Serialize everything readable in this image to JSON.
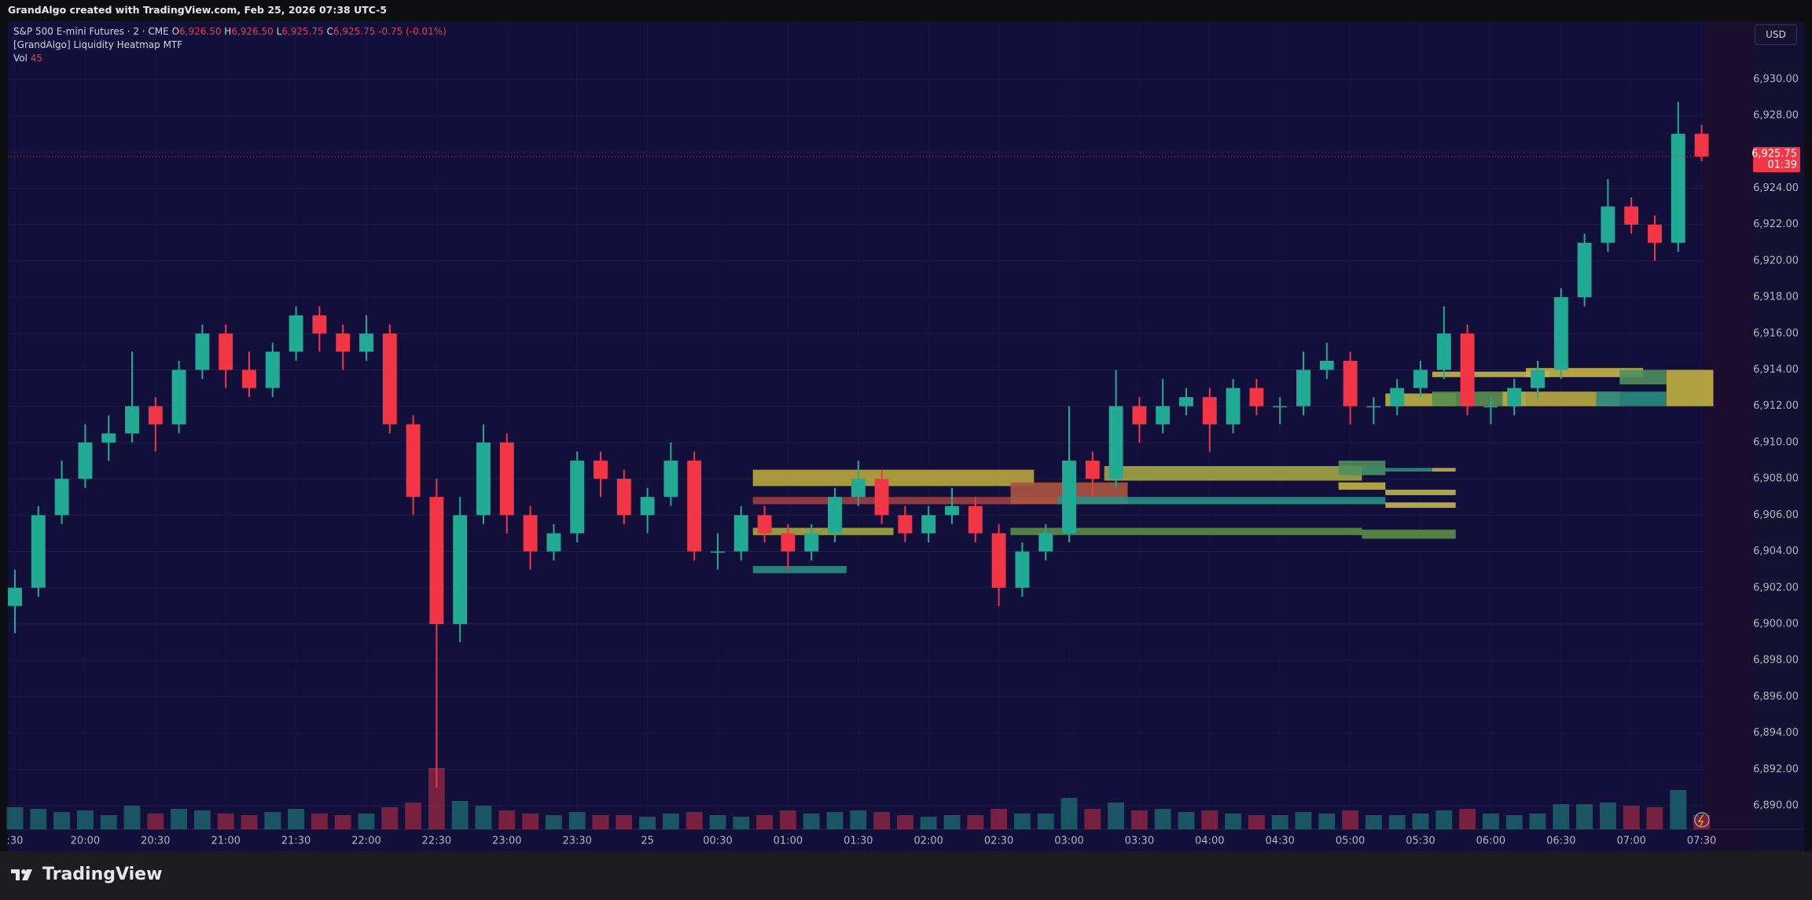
{
  "header": {
    "credit": "GrandAlgo created with TradingView.com, Feb 25, 2026 07:38 UTC-5"
  },
  "currency": "USD",
  "footer": {
    "brand": "TradingView"
  },
  "chart_data": {
    "type": "candlestick",
    "legend": {
      "symbol": "S&P 500 E-mini Futures · 2 · CME",
      "o_label": "O",
      "open": "6,926.50",
      "h_label": "H",
      "high": "6,926.50",
      "l_label": "L",
      "low": "6,925.75",
      "c_label": "C",
      "close": "6,925.75",
      "change": "-0.75 (-0.01%)",
      "indicator": "[GrandAlgo] Liquidity Heatmap MTF",
      "vol_label": "Vol",
      "vol": "45"
    },
    "x": [
      "19:30",
      "19:40",
      "19:50",
      "20:00",
      "20:10",
      "20:20",
      "20:30",
      "20:40",
      "20:50",
      "21:00",
      "21:10",
      "21:20",
      "21:30",
      "21:40",
      "21:50",
      "22:00",
      "22:10",
      "22:20",
      "22:30",
      "22:40",
      "22:50",
      "23:00",
      "23:10",
      "23:20",
      "23:30",
      "23:40",
      "23:50",
      "00:00",
      "00:10",
      "00:20",
      "00:30",
      "00:40",
      "00:50",
      "01:00",
      "01:10",
      "01:20",
      "01:30",
      "01:40",
      "01:50",
      "02:00",
      "02:10",
      "02:20",
      "02:30",
      "02:40",
      "02:50",
      "03:00",
      "03:10",
      "03:20",
      "03:30",
      "03:40",
      "03:50",
      "04:00",
      "04:10",
      "04:20",
      "04:30",
      "04:40",
      "04:50",
      "05:00",
      "05:10",
      "05:20",
      "05:30",
      "05:40",
      "05:50",
      "06:00",
      "06:10",
      "06:20",
      "06:30",
      "06:40",
      "06:50",
      "07:00",
      "07:10",
      "07:20",
      "07:30"
    ],
    "xticks": [
      {
        "value": "19:30",
        "label": ":30"
      },
      "20:00",
      "20:30",
      "21:00",
      "21:30",
      "22:00",
      "22:30",
      "23:00",
      "23:30",
      {
        "value": "00:00",
        "label": "25"
      },
      "00:30",
      "01:00",
      "01:30",
      "02:00",
      "02:30",
      "03:00",
      "03:30",
      "04:00",
      "04:30",
      "05:00",
      "05:30",
      "06:00",
      "06:30",
      "07:00",
      "07:30"
    ],
    "candles": [
      [
        6901,
        6903,
        6899.5,
        6902
      ],
      [
        6902,
        6906.5,
        6901.5,
        6906
      ],
      [
        6906,
        6909,
        6905.5,
        6908
      ],
      [
        6908,
        6911,
        6907.5,
        6910
      ],
      [
        6910,
        6911.5,
        6909,
        6910.5
      ],
      [
        6910.5,
        6915,
        6910,
        6912
      ],
      [
        6912,
        6912.5,
        6909.5,
        6911
      ],
      [
        6911,
        6914.5,
        6910.5,
        6914
      ],
      [
        6914,
        6916.5,
        6913.5,
        6916
      ],
      [
        6916,
        6916.5,
        6913,
        6914
      ],
      [
        6914,
        6915,
        6912.5,
        6913
      ],
      [
        6913,
        6915.5,
        6912.5,
        6915
      ],
      [
        6915,
        6917.5,
        6914.5,
        6917
      ],
      [
        6917,
        6917.5,
        6915,
        6916
      ],
      [
        6916,
        6916.5,
        6914,
        6915
      ],
      [
        6915,
        6917,
        6914.5,
        6916
      ],
      [
        6916,
        6916.5,
        6910.5,
        6911
      ],
      [
        6911,
        6911.5,
        6906,
        6907
      ],
      [
        6907,
        6908,
        6891,
        6900
      ],
      [
        6900,
        6907,
        6899,
        6906
      ],
      [
        6906,
        6911,
        6905.5,
        6910
      ],
      [
        6910,
        6910.5,
        6905,
        6906
      ],
      [
        6906,
        6906.5,
        6903,
        6904
      ],
      [
        6904,
        6905.5,
        6903.5,
        6905
      ],
      [
        6905,
        6909.5,
        6904.5,
        6909
      ],
      [
        6909,
        6909.5,
        6907,
        6908
      ],
      [
        6908,
        6908.5,
        6905.5,
        6906
      ],
      [
        6906,
        6907.5,
        6905,
        6907
      ],
      [
        6907,
        6910,
        6906.5,
        6909
      ],
      [
        6909,
        6909.5,
        6903.5,
        6904
      ],
      [
        6904,
        6905,
        6903,
        6904
      ],
      [
        6904,
        6906.5,
        6903.5,
        6906
      ],
      [
        6906,
        6906.5,
        6904.5,
        6905
      ],
      [
        6905,
        6905.5,
        6903,
        6904
      ],
      [
        6904,
        6905.5,
        6903.5,
        6905
      ],
      [
        6905,
        6907.5,
        6904.5,
        6907
      ],
      [
        6907,
        6909,
        6906.5,
        6908
      ],
      [
        6908,
        6908.5,
        6905.5,
        6906
      ],
      [
        6906,
        6906.5,
        6904.5,
        6905
      ],
      [
        6905,
        6906.5,
        6904.5,
        6906
      ],
      [
        6906,
        6907.5,
        6905.5,
        6906.5
      ],
      [
        6906.5,
        6907,
        6904.5,
        6905
      ],
      [
        6905,
        6905.5,
        6901,
        6902
      ],
      [
        6902,
        6904.5,
        6901.5,
        6904
      ],
      [
        6904,
        6905.5,
        6903.5,
        6905
      ],
      [
        6905,
        6912,
        6904.5,
        6909
      ],
      [
        6909,
        6909.5,
        6907,
        6908
      ],
      [
        6908,
        6914,
        6907.5,
        6912
      ],
      [
        6912,
        6912.5,
        6910,
        6911
      ],
      [
        6911,
        6913.5,
        6910.5,
        6912
      ],
      [
        6912,
        6913,
        6911.5,
        6912.5
      ],
      [
        6912.5,
        6913,
        6909.5,
        6911
      ],
      [
        6911,
        6913.5,
        6910.5,
        6913
      ],
      [
        6913,
        6913.5,
        6911.5,
        6912
      ],
      [
        6912,
        6912.5,
        6911,
        6912
      ],
      [
        6912,
        6915,
        6911.5,
        6914
      ],
      [
        6914,
        6915.5,
        6913.5,
        6914.5
      ],
      [
        6914.5,
        6915,
        6911,
        6912
      ],
      [
        6912,
        6912.5,
        6911,
        6912
      ],
      [
        6912,
        6913.5,
        6911.5,
        6913
      ],
      [
        6913,
        6914.5,
        6912.5,
        6914
      ],
      [
        6914,
        6917.5,
        6913.5,
        6916
      ],
      [
        6916,
        6916.5,
        6911.5,
        6912
      ],
      [
        6912,
        6912.5,
        6911,
        6912
      ],
      [
        6912,
        6913.5,
        6911.5,
        6913
      ],
      [
        6913,
        6914.5,
        6912.5,
        6914
      ],
      [
        6914,
        6918.5,
        6913.5,
        6918
      ],
      [
        6918,
        6921.5,
        6917.5,
        6921
      ],
      [
        6921,
        6924.5,
        6920.5,
        6923
      ],
      [
        6923,
        6923.5,
        6921.5,
        6922
      ],
      [
        6922,
        6922.5,
        6920,
        6921
      ],
      [
        6921,
        6928.75,
        6920.5,
        6927
      ],
      [
        6927,
        6927.5,
        6925.5,
        6925.75
      ]
    ],
    "volume": [
      1400,
      1300,
      1100,
      1200,
      900,
      1500,
      1000,
      1300,
      1200,
      1000,
      900,
      1100,
      1300,
      1000,
      900,
      1000,
      1400,
      1700,
      3900,
      1800,
      1500,
      1200,
      1000,
      900,
      1100,
      900,
      900,
      800,
      1000,
      1100,
      900,
      800,
      900,
      1200,
      1000,
      1100,
      1200,
      1100,
      900,
      800,
      900,
      900,
      1300,
      1000,
      1000,
      2000,
      1300,
      1700,
      1200,
      1300,
      1100,
      1200,
      1000,
      900,
      900,
      1100,
      1000,
      1200,
      900,
      900,
      1000,
      1200,
      1300,
      1000,
      900,
      1000,
      1600,
      1600,
      1700,
      1500,
      1400,
      2500,
      900
    ],
    "up_color": "#22ab94",
    "down_color": "#f23645",
    "heatmap": [
      {
        "from": "00:50",
        "to": "02:40",
        "price": [
          6907.6,
          6908.5
        ],
        "color": "#b8a83c"
      },
      {
        "from": "00:50",
        "to": "03:20",
        "price": [
          6906.6,
          6907.0
        ],
        "color": "#9c3f45"
      },
      {
        "from": "02:40",
        "to": "03:20",
        "price": [
          6906.6,
          6907.8
        ],
        "color": "#a8553f"
      },
      {
        "from": "03:20",
        "to": "05:00",
        "price": [
          6907.9,
          6908.7
        ],
        "color": "#a3a544"
      },
      {
        "from": "05:00",
        "to": "05:10",
        "price": [
          6908.2,
          6909.0
        ],
        "color": "#4e8f5f"
      },
      {
        "from": "05:10",
        "to": "05:30",
        "price": [
          6908.4,
          6908.6
        ],
        "color": "#2a8f80"
      },
      {
        "from": "05:40",
        "to": "05:40",
        "price": [
          6908.4,
          6908.6
        ],
        "color": "#c0b040"
      },
      {
        "from": "03:00",
        "to": "05:10",
        "price": [
          6906.6,
          6907.0
        ],
        "color": "#2a8f85"
      },
      {
        "from": "05:00",
        "to": "05:10",
        "price": [
          6907.4,
          6907.8
        ],
        "color": "#c4b248"
      },
      {
        "from": "05:20",
        "to": "05:40",
        "price": [
          6907.1,
          6907.4
        ],
        "color": "#c4b248"
      },
      {
        "from": "05:20",
        "to": "05:40",
        "price": [
          6906.4,
          6906.7
        ],
        "color": "#c8b54a"
      },
      {
        "from": "02:40",
        "to": "05:00",
        "price": [
          6904.9,
          6905.3
        ],
        "color": "#5b8d48"
      },
      {
        "from": "00:50",
        "to": "01:40",
        "price": [
          6904.9,
          6905.3
        ],
        "color": "#a5a840"
      },
      {
        "from": "00:50",
        "to": "01:20",
        "price": [
          6902.8,
          6903.2
        ],
        "color": "#2a8a80"
      },
      {
        "from": "05:10",
        "to": "05:40",
        "price": [
          6904.7,
          6905.2
        ],
        "color": "#5b8d48"
      },
      {
        "from": "05:20",
        "to": "05:40",
        "price": [
          6912.0,
          6912.7
        ],
        "color": "#bdb043"
      },
      {
        "from": "05:40",
        "to": "06:10",
        "price": [
          6912.0,
          6912.8
        ],
        "color": "#5a8f50"
      },
      {
        "from": "06:10",
        "to": "06:50",
        "price": [
          6912.0,
          6912.8
        ],
        "color": "#b8aa40"
      },
      {
        "from": "06:50",
        "to": "07:10",
        "price": [
          6912.0,
          6912.8
        ],
        "color": "#2a8a80"
      },
      {
        "from": "05:40",
        "to": "06:20",
        "price": [
          6913.6,
          6913.9
        ],
        "color": "#c8b545"
      },
      {
        "from": "06:20",
        "to": "07:00",
        "price": [
          6913.6,
          6914.1
        ],
        "color": "#c8b545"
      },
      {
        "from": "07:00",
        "to": "07:10",
        "price": [
          6913.2,
          6914.0
        ],
        "color": "#4f8f5f"
      },
      {
        "from": "07:20",
        "to": "07:30",
        "price": [
          6912.0,
          6914.0
        ],
        "color": "#c2b245"
      }
    ],
    "last_price": {
      "value": 6925.75,
      "label": "6,925.75"
    },
    "countdown": "01:39",
    "ylim": [
      6888.7,
      6933.2
    ],
    "yticks": [
      {
        "value": 6890,
        "label": "6,890.00"
      },
      {
        "value": 6892,
        "label": "6,892.00"
      },
      {
        "value": 6894,
        "label": "6,894.00"
      },
      {
        "value": 6896,
        "label": "6,896.00"
      },
      {
        "value": 6898,
        "label": "6,898.00"
      },
      {
        "value": 6900,
        "label": "6,900.00"
      },
      {
        "value": 6902,
        "label": "6,902.00"
      },
      {
        "value": 6904,
        "label": "6,904.00"
      },
      {
        "value": 6906,
        "label": "6,906.00"
      },
      {
        "value": 6908,
        "label": "6,908.00"
      },
      {
        "value": 6910,
        "label": "6,910.00"
      },
      {
        "value": 6912,
        "label": "6,912.00"
      },
      {
        "value": 6914,
        "label": "6,914.00"
      },
      {
        "value": 6916,
        "label": "6,916.00"
      },
      {
        "value": 6918,
        "label": "6,918.00"
      },
      {
        "value": 6920,
        "label": "6,920.00"
      },
      {
        "value": 6922,
        "label": "6,922.00"
      },
      {
        "value": 6924,
        "label": "6,924.00"
      },
      {
        "value": 6926,
        "label": "6,926.00"
      },
      {
        "value": 6928,
        "label": "6,928.00"
      },
      {
        "value": 6930,
        "label": "6,930.00"
      }
    ],
    "grid": true
  }
}
